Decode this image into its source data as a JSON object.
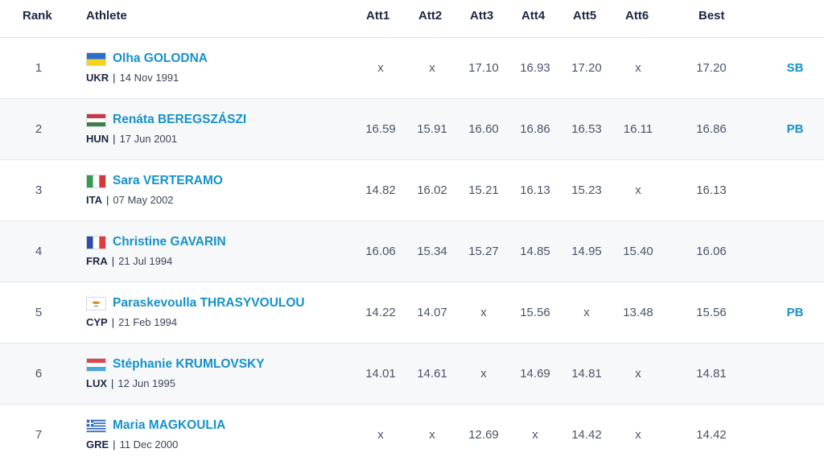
{
  "headers": {
    "rank": "Rank",
    "athlete": "Athlete",
    "att1": "Att1",
    "att2": "Att2",
    "att3": "Att3",
    "att4": "Att4",
    "att5": "Att5",
    "att6": "Att6",
    "best": "Best"
  },
  "rows": [
    {
      "rank": "1",
      "name": "Olha GOLODNA",
      "country": "UKR",
      "dob": "14 Nov 1991",
      "flag": "ukraine-flag-icon",
      "att": [
        "x",
        "x",
        "17.10",
        "16.93",
        "17.20",
        "x"
      ],
      "best": "17.20",
      "mark": "SB"
    },
    {
      "rank": "2",
      "name": "Renáta BEREGSZÁSZI",
      "country": "HUN",
      "dob": "17 Jun 2001",
      "flag": "hungary-flag-icon",
      "att": [
        "16.59",
        "15.91",
        "16.60",
        "16.86",
        "16.53",
        "16.11"
      ],
      "best": "16.86",
      "mark": "PB"
    },
    {
      "rank": "3",
      "name": "Sara VERTERAMO",
      "country": "ITA",
      "dob": "07 May 2002",
      "flag": "italy-flag-icon",
      "att": [
        "14.82",
        "16.02",
        "15.21",
        "16.13",
        "15.23",
        "x"
      ],
      "best": "16.13",
      "mark": ""
    },
    {
      "rank": "4",
      "name": "Christine GAVARIN",
      "country": "FRA",
      "dob": "21 Jul 1994",
      "flag": "france-flag-icon",
      "att": [
        "16.06",
        "15.34",
        "15.27",
        "14.85",
        "14.95",
        "15.40"
      ],
      "best": "16.06",
      "mark": ""
    },
    {
      "rank": "5",
      "name": "Paraskevoulla THRASYVOULOU",
      "country": "CYP",
      "dob": "21 Feb 1994",
      "flag": "cyprus-flag-icon",
      "att": [
        "14.22",
        "14.07",
        "x",
        "15.56",
        "x",
        "13.48"
      ],
      "best": "15.56",
      "mark": "PB"
    },
    {
      "rank": "6",
      "name": "Stéphanie KRUMLOVSKY",
      "country": "LUX",
      "dob": "12 Jun 1995",
      "flag": "luxembourg-flag-icon",
      "att": [
        "14.01",
        "14.61",
        "x",
        "14.69",
        "14.81",
        "x"
      ],
      "best": "14.81",
      "mark": ""
    },
    {
      "rank": "7",
      "name": "Maria MAGKOULIA",
      "country": "GRE",
      "dob": "11 Dec 2000",
      "flag": "greece-flag-icon",
      "att": [
        "x",
        "x",
        "12.69",
        "x",
        "14.42",
        "x"
      ],
      "best": "14.42",
      "mark": ""
    }
  ],
  "colors": {
    "link": "#1592c9",
    "header_text": "#1a2743",
    "row_alt": "#f7f8f9",
    "divider": "#e3e6ea"
  }
}
